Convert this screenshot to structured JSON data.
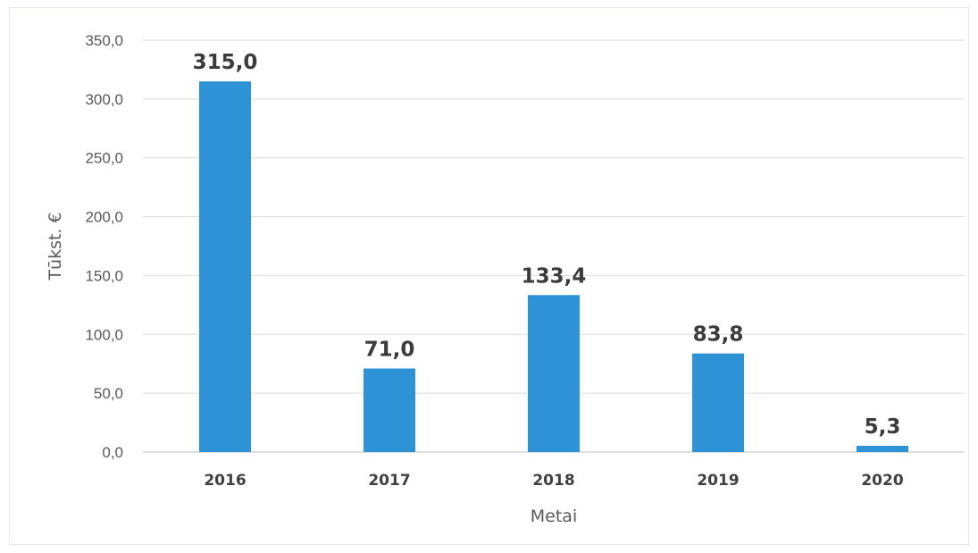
{
  "chart_data": {
    "type": "bar",
    "categories": [
      "2016",
      "2017",
      "2018",
      "2019",
      "2020"
    ],
    "values": [
      315.0,
      71.0,
      133.4,
      83.8,
      5.3
    ],
    "data_labels": [
      "315,0",
      "71,0",
      "133,4",
      "83,8",
      "5,3"
    ],
    "y_ticks": [
      "0,0",
      "50,0",
      "100,0",
      "150,0",
      "200,0",
      "250,0",
      "300,0",
      "350,0"
    ],
    "ylim": [
      0,
      350
    ],
    "ytick_step": 50,
    "xlabel": "Metai",
    "ylabel": "Tūkst. €",
    "title": "",
    "grid": true,
    "legend": "none",
    "colors": {
      "bar": "#2e93d6",
      "grid": "#d9d9d9",
      "axis": "#bfbfbf"
    }
  }
}
